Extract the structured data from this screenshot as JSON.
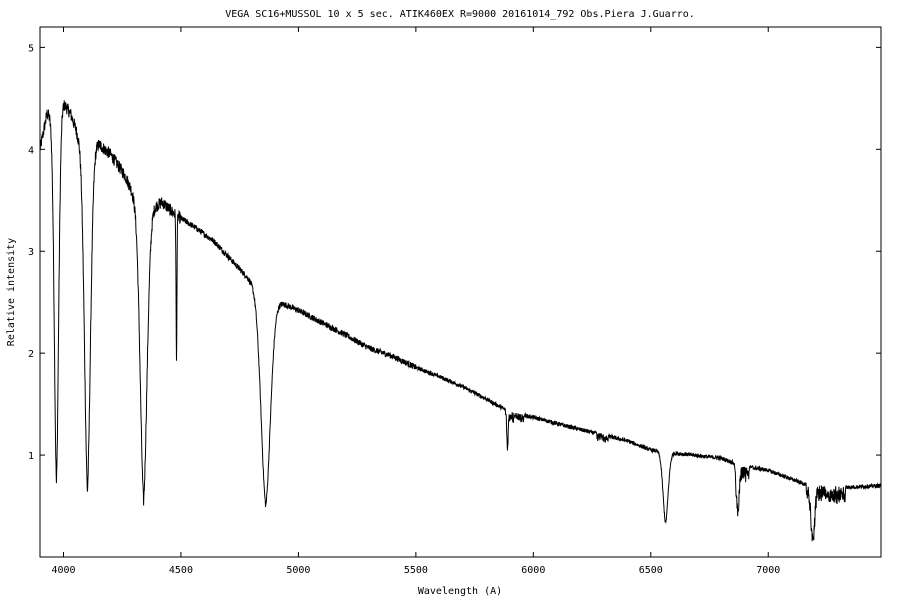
{
  "chart_data": {
    "type": "line",
    "title": "VEGA  SC16+MUSSOL 10 x 5 sec. ATIK460EX  R=9000   20161014_792  Obs.Piera  J.Guarro.",
    "xlabel": "Wavelength (A)",
    "ylabel": "Relative intensity",
    "xlim": [
      3900,
      7480
    ],
    "ylim": [
      0.0,
      5.2
    ],
    "x_ticks": [
      4000,
      4500,
      5000,
      5500,
      6000,
      6500,
      7000
    ],
    "y_ticks": [
      1,
      2,
      3,
      4,
      5
    ],
    "grid": false,
    "legend": "none",
    "line_color": "#000000",
    "continuum": [
      [
        3900,
        4.0
      ],
      [
        3930,
        4.35
      ],
      [
        3960,
        4.3
      ],
      [
        4000,
        4.45
      ],
      [
        4030,
        4.35
      ],
      [
        4060,
        4.15
      ],
      [
        4100,
        4.05
      ],
      [
        4150,
        4.05
      ],
      [
        4200,
        3.95
      ],
      [
        4260,
        3.75
      ],
      [
        4300,
        3.55
      ],
      [
        4360,
        3.4
      ],
      [
        4420,
        3.48
      ],
      [
        4480,
        3.35
      ],
      [
        4550,
        3.25
      ],
      [
        4640,
        3.1
      ],
      [
        4700,
        2.95
      ],
      [
        4760,
        2.8
      ],
      [
        4800,
        2.7
      ],
      [
        4920,
        2.5
      ],
      [
        5000,
        2.42
      ],
      [
        5100,
        2.3
      ],
      [
        5200,
        2.18
      ],
      [
        5300,
        2.05
      ],
      [
        5400,
        1.97
      ],
      [
        5500,
        1.86
      ],
      [
        5600,
        1.77
      ],
      [
        5700,
        1.67
      ],
      [
        5800,
        1.55
      ],
      [
        5900,
        1.42
      ],
      [
        6000,
        1.37
      ],
      [
        6200,
        1.25
      ],
      [
        6400,
        1.14
      ],
      [
        6500,
        1.05
      ],
      [
        6600,
        1.02
      ],
      [
        6800,
        0.97
      ],
      [
        6880,
        0.9
      ],
      [
        7000,
        0.85
      ],
      [
        7150,
        0.72
      ],
      [
        7300,
        0.68
      ],
      [
        7480,
        0.7
      ]
    ],
    "absorption_lines": [
      {
        "wavelength": 3970,
        "minimum": 0.72,
        "width": 10
      },
      {
        "wavelength": 4102,
        "minimum": 0.65,
        "width": 14
      },
      {
        "wavelength": 4341,
        "minimum": 0.55,
        "width": 16
      },
      {
        "wavelength": 4481,
        "minimum": 1.9,
        "width": 2
      },
      {
        "wavelength": 4861,
        "minimum": 0.5,
        "width": 22
      },
      {
        "wavelength": 5890,
        "minimum": 1.1,
        "width": 3
      },
      {
        "wavelength": 6563,
        "minimum": 0.33,
        "width": 12
      },
      {
        "wavelength": 6870,
        "minimum": 0.5,
        "width": 6
      },
      {
        "wavelength": 7190,
        "minimum": 0.22,
        "width": 8
      }
    ]
  }
}
